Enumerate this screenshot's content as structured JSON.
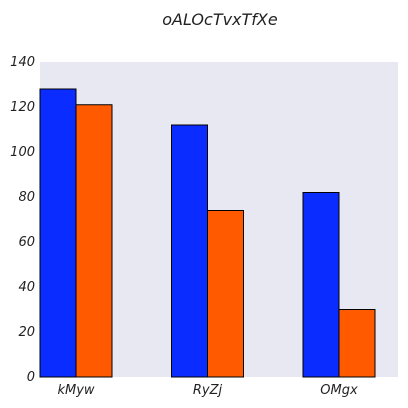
{
  "chart_data": {
    "type": "bar",
    "title": "oALOcTvxTfXe",
    "xlabel": "",
    "ylabel": "",
    "categories": [
      "kMyw",
      "RyZj",
      "OMgx"
    ],
    "series": [
      {
        "values": [
          128,
          112,
          82
        ],
        "color": "#0a2cff"
      },
      {
        "values": [
          121,
          74,
          30
        ],
        "color": "#ff5a00"
      }
    ],
    "ylim": [
      0,
      140
    ],
    "yticks": [
      0,
      20,
      40,
      60,
      80,
      100,
      120,
      140
    ],
    "grid": false,
    "plot_background": "#e8e8f2",
    "bar_edge_color": "#000000"
  }
}
